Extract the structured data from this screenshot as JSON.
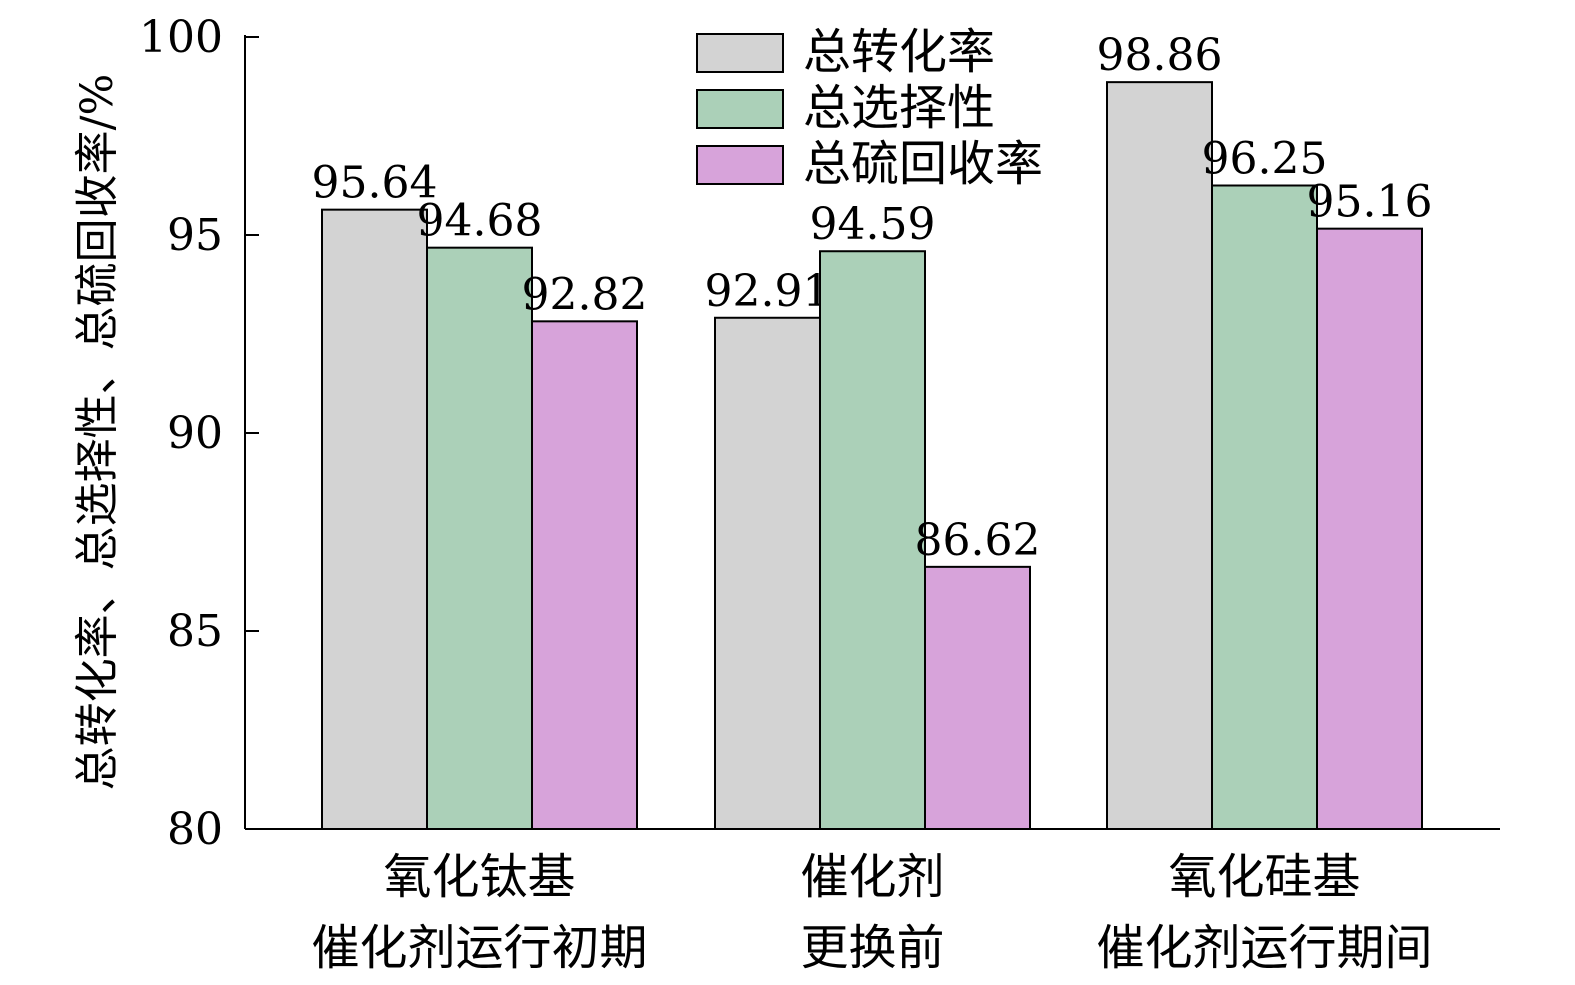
{
  "chart_data": {
    "type": "bar",
    "title": "",
    "xlabel": "",
    "ylabel": "总转化率、总选择性、总硫回收率/%",
    "ylim": [
      80,
      100
    ],
    "yticks": [
      80,
      85,
      90,
      95,
      100
    ],
    "grid": false,
    "legend_position": "top-center",
    "categories": [
      [
        "氧化钛基",
        "催化剂运行初期"
      ],
      [
        "催化剂",
        "更换前"
      ],
      [
        "氧化硅基",
        "催化剂运行期间"
      ]
    ],
    "series": [
      {
        "name": "总转化率",
        "color": "#d3d3d3",
        "values": [
          95.64,
          92.91,
          98.86
        ]
      },
      {
        "name": "总选择性",
        "color": "#abd0b8",
        "values": [
          94.68,
          94.59,
          96.25
        ]
      },
      {
        "name": "总硫回收率",
        "color": "#d7a3da",
        "values": [
          92.82,
          86.62,
          95.16
        ]
      }
    ]
  }
}
